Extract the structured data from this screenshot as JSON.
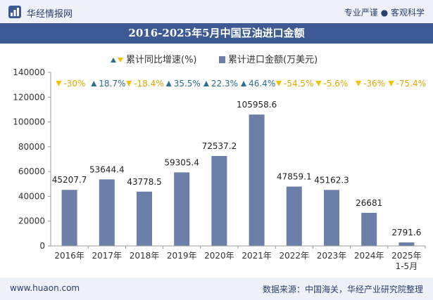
{
  "header": {
    "brand": "华经情报网",
    "tagline": "专业严谨 ● 客观科学"
  },
  "footer": {
    "website": "www.huaon.com",
    "source": "数据来源：中国海关，华经产业研究院整理"
  },
  "colors": {
    "bar": "#6b7fa8",
    "up_triangle": "#2e6f8e",
    "down_triangle": "#f2c200",
    "title_bg": "#3d5a94"
  },
  "chart_data": {
    "type": "bar",
    "title": "2016-2025年5月中国豆油进口金额",
    "categories": [
      "2016年",
      "2017年",
      "2018年",
      "2019年",
      "2020年",
      "2021年",
      "2022年",
      "2023年",
      "2024年",
      "2025年\n1-5月"
    ],
    "series": [
      {
        "name": "累计进口金额(万美元)",
        "values": [
          45207.7,
          53644.4,
          43778.5,
          59305.4,
          72537.2,
          105958.6,
          47859.1,
          45162.3,
          26681,
          2791.6
        ],
        "labels": [
          "45207.7",
          "53644.4",
          "43778.5",
          "59305.4",
          "72537.2",
          "105958.6",
          "47859.1",
          "45162.3",
          "26681",
          "2791.6"
        ]
      },
      {
        "name": "累计同比增速(%)",
        "values": [
          -30,
          18.7,
          -18.4,
          35.5,
          22.3,
          46.4,
          -54.5,
          -5.6,
          -36,
          -75.4
        ],
        "labels": [
          "-30%",
          "18.7%",
          "-18.4%",
          "35.5%",
          "22.3%",
          "46.4%",
          "-54.5%",
          "-5.6%",
          "-36%",
          "-75.4%"
        ]
      }
    ],
    "ylim": [
      0,
      140000
    ],
    "yticks": [
      0,
      20000,
      40000,
      60000,
      80000,
      100000,
      120000,
      140000
    ],
    "legend_position": "top-center",
    "grid": false
  }
}
